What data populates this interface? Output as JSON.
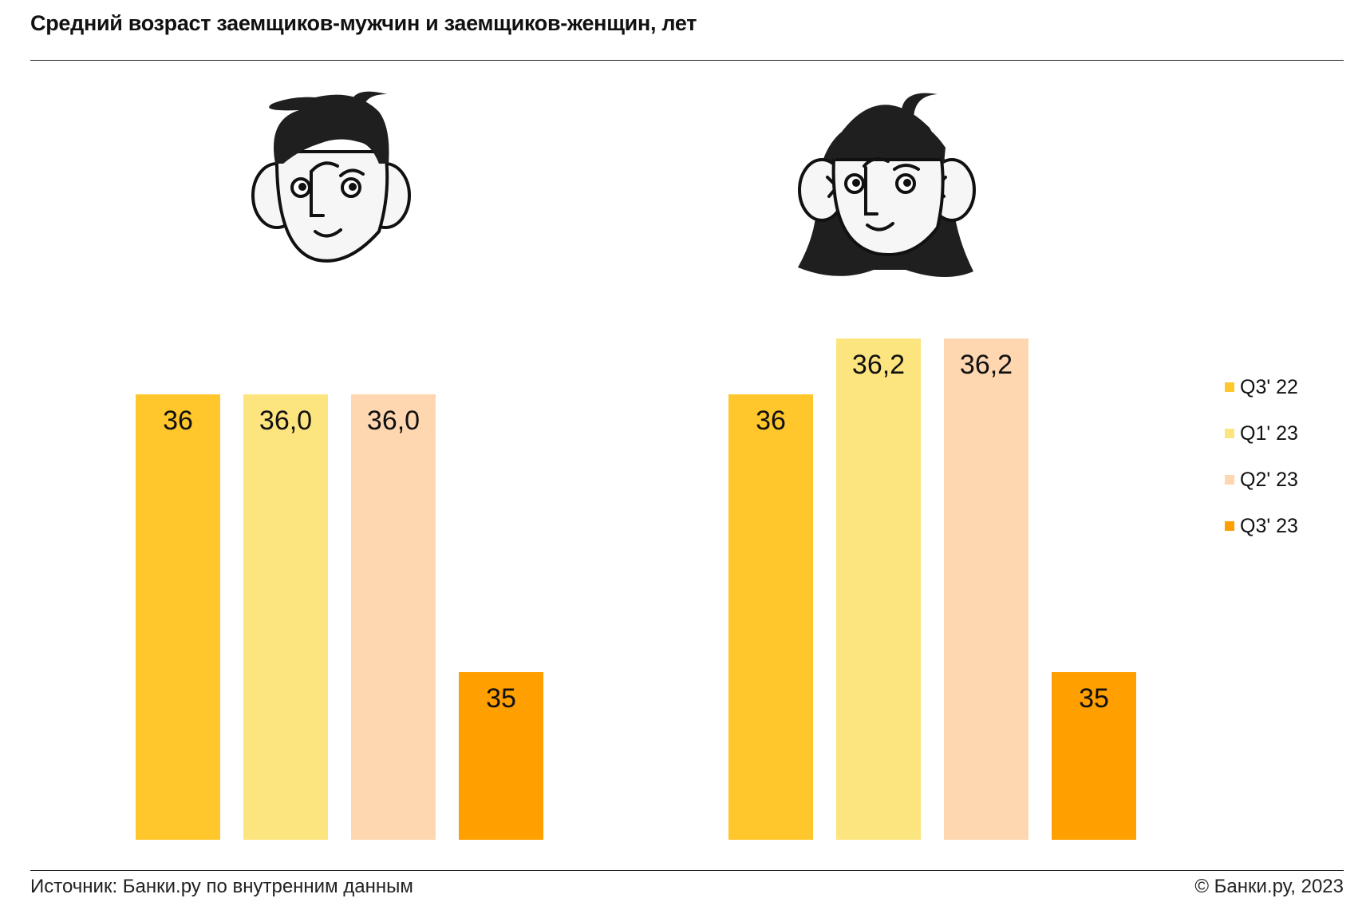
{
  "header": {
    "title": "Средний возраст заемщиков-мужчин и заемщиков-женщин, лет"
  },
  "footer": {
    "source": "Источник: Банки.ру по внутренним данным",
    "copyright": "© Банки.ру, 2023"
  },
  "chart_data": {
    "type": "bar",
    "title": "Средний возраст заемщиков-мужчин и заемщиков-женщин, лет",
    "groups": [
      "male",
      "female"
    ],
    "series": [
      {
        "name": "Q3' 22",
        "color": "#FFC72C",
        "values": [
          36,
          36
        ],
        "labels": [
          "36",
          "36"
        ]
      },
      {
        "name": "Q1' 23",
        "color": "#FCE57F",
        "values": [
          36.0,
          36.2
        ],
        "labels": [
          "36,0",
          "36,2"
        ]
      },
      {
        "name": "Q2' 23",
        "color": "#FED7B0",
        "values": [
          36.0,
          36.2
        ],
        "labels": [
          "36,0",
          "36,2"
        ]
      },
      {
        "name": "Q3' 23",
        "color": "#FF9F00",
        "values": [
          35,
          35
        ],
        "labels": [
          "35",
          "35"
        ]
      }
    ],
    "legend_position": "right",
    "grid": false,
    "icons": [
      "male-face-icon",
      "female-face-icon"
    ]
  }
}
